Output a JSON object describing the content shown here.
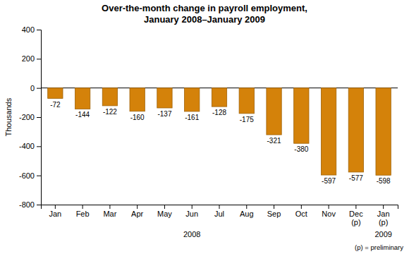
{
  "chart_data": {
    "type": "bar",
    "title": "Over-the-month change in payroll employment,\nJanuary 2008–January 2009",
    "categories": [
      "Jan",
      "Feb",
      "Mar",
      "Apr",
      "May",
      "Jun",
      "Jul",
      "Aug",
      "Sep",
      "Oct",
      "Nov",
      "Dec\n(p)",
      "Jan\n(p)"
    ],
    "values": [
      -72,
      -144,
      -122,
      -160,
      -137,
      -161,
      -128,
      -175,
      -321,
      -380,
      -597,
      -577,
      -598
    ],
    "color": "#D4820A",
    "ylabel": "Thousands",
    "ylim": [
      -800,
      400
    ],
    "yticks": [
      -800,
      -600,
      -400,
      -200,
      0,
      200,
      400
    ],
    "grid": false,
    "data_labels": true,
    "annotations": [
      "2008",
      "2009",
      "(p) = preliminary"
    ]
  }
}
